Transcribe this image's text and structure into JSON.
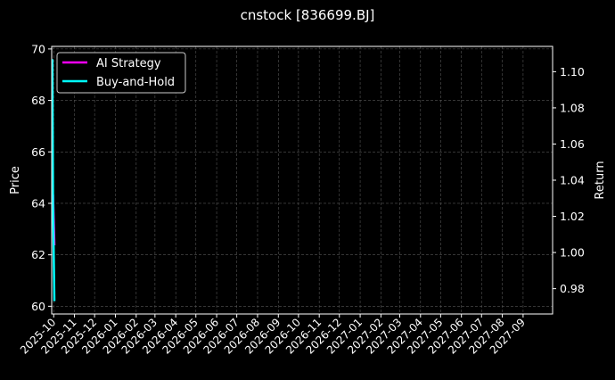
{
  "chart_data": {
    "type": "line",
    "title": "cnstock [836699.BJ]",
    "ylabel_left": "Price",
    "ylabel_right": "Return",
    "xlabel": "",
    "grid": true,
    "legend_position": "top-left",
    "x_ticks": [
      "2025-10",
      "2025-11",
      "2025-12",
      "2026-01",
      "2026-02",
      "2026-03",
      "2026-04",
      "2026-05",
      "2026-06",
      "2026-07",
      "2026-08",
      "2026-09",
      "2026-10",
      "2026-11",
      "2026-12",
      "2027-01",
      "2027-02",
      "2027-03",
      "2027-04",
      "2027-05",
      "2027-06",
      "2027-07",
      "2027-08",
      "2027-09"
    ],
    "y_left_ticks": [
      60,
      62,
      64,
      66,
      68,
      70
    ],
    "y_left_lim": [
      59.7,
      70.1
    ],
    "y_right_ticks": [
      0.98,
      1.0,
      1.02,
      1.04,
      1.06,
      1.08,
      1.1
    ],
    "y_right_lim": [
      0.966,
      1.114
    ],
    "x_lim": [
      "2025-09-28",
      "2027-10-15"
    ],
    "series": [
      {
        "name": "AI Strategy",
        "axis": "right",
        "color": "#ff00ff",
        "x": [
          "2025-09-30",
          "2025-10-02"
        ],
        "values": [
          1.032,
          1.004
        ]
      },
      {
        "name": "Buy-and-Hold",
        "axis": "left",
        "color": "#00ffff",
        "x": [
          "2025-09-29",
          "2025-09-30",
          "2025-10-02"
        ],
        "values": [
          69.6,
          64.0,
          60.2
        ]
      }
    ]
  }
}
